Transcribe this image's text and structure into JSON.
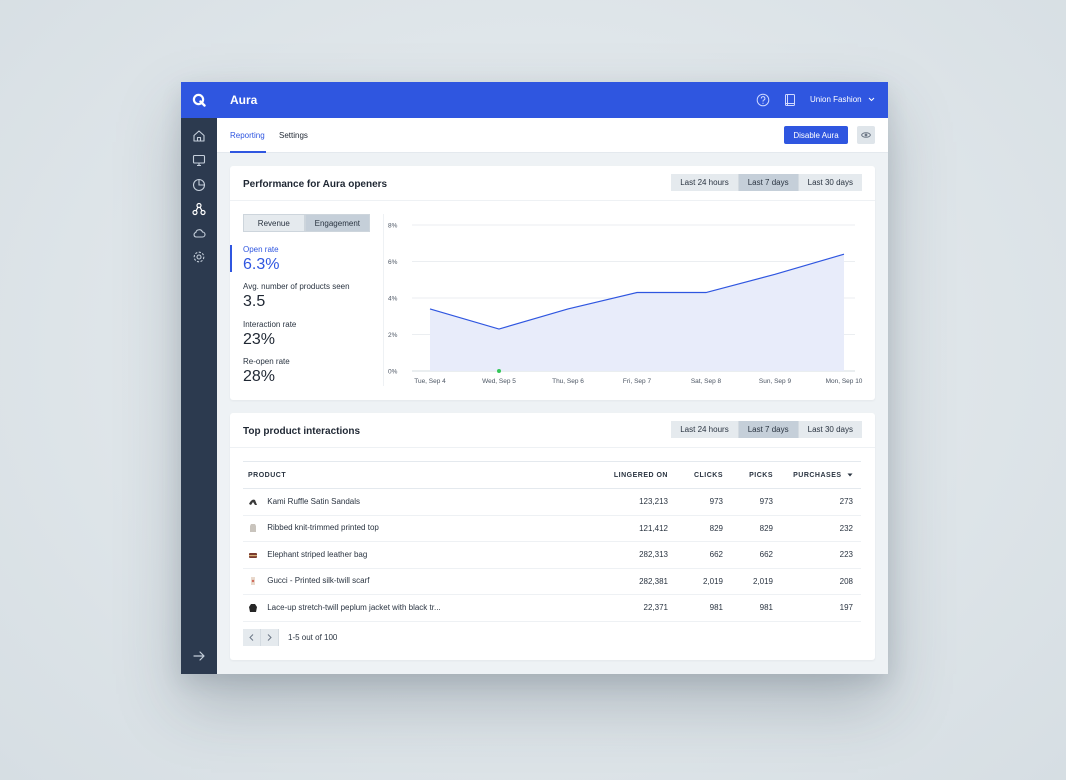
{
  "app": {
    "title": "Aura",
    "account": "Union Fashion",
    "logo_letter": "Q"
  },
  "sidebar": {
    "items": [
      {
        "name": "home-icon"
      },
      {
        "name": "monitor-icon"
      },
      {
        "name": "pie-chart-icon"
      },
      {
        "name": "integrations-icon"
      },
      {
        "name": "cloud-icon"
      },
      {
        "name": "gear-icon"
      }
    ],
    "collapse": "arrow-right-icon"
  },
  "subnav": {
    "tabs": [
      {
        "label": "Reporting",
        "active": true
      },
      {
        "label": "Settings",
        "active": false
      }
    ],
    "disable_button": "Disable Aura"
  },
  "performance": {
    "title": "Performance for Aura openers",
    "ranges": [
      "Last 24 hours",
      "Last 7 days",
      "Last 30 days"
    ],
    "active_range": "Last 7 days",
    "toggle": [
      "Revenue",
      "Engagement"
    ],
    "active_toggle": "Engagement",
    "metrics": [
      {
        "label": "Open rate",
        "value": "6.3%"
      },
      {
        "label": "Avg. number of products seen",
        "value": "3.5"
      },
      {
        "label": "Interaction rate",
        "value": "23%"
      },
      {
        "label": "Re-open rate",
        "value": "28%"
      }
    ]
  },
  "chart_data": {
    "type": "area",
    "title": "",
    "xlabel": "",
    "ylabel": "",
    "categories": [
      "Tue, Sep 4",
      "Wed, Sep 5",
      "Thu, Sep 6",
      "Fri, Sep 7",
      "Sat, Sep 8",
      "Sun, Sep 9",
      "Mon, Sep 10"
    ],
    "series": [
      {
        "values": [
          3.4,
          2.3,
          3.4,
          4.3,
          4.3,
          5.3,
          6.4
        ]
      }
    ],
    "yticks": [
      "0%",
      "2%",
      "4%",
      "6%",
      "8%"
    ],
    "ylim": [
      0,
      8
    ],
    "grid": true,
    "line_color": "#2f56e0",
    "fill_color": "#e8ecfa",
    "marker": {
      "category": "Wed, Sep 5",
      "color": "#34c759"
    }
  },
  "products": {
    "title": "Top product interactions",
    "ranges": [
      "Last 24 hours",
      "Last 7 days",
      "Last 30 days"
    ],
    "active_range": "Last 7 days",
    "columns": [
      "PRODUCT",
      "LINGERED ON",
      "CLICKS",
      "PICKS",
      "PURCHASES"
    ],
    "rows": [
      {
        "name": "Kami Ruffle Satin Sandals",
        "lingered": "123,213",
        "clicks": "973",
        "picks": "973",
        "purchases": "273"
      },
      {
        "name": "Ribbed knit-trimmed printed top",
        "lingered": "121,412",
        "clicks": "829",
        "picks": "829",
        "purchases": "232"
      },
      {
        "name": "Elephant striped leather bag",
        "lingered": "282,313",
        "clicks": "662",
        "picks": "662",
        "purchases": "223"
      },
      {
        "name": "Gucci - Printed silk-twill scarf",
        "lingered": "282,381",
        "clicks": "2,019",
        "picks": "2,019",
        "purchases": "208"
      },
      {
        "name": "Lace-up stretch-twill peplum jacket with black tr...",
        "lingered": "22,371",
        "clicks": "981",
        "picks": "981",
        "purchases": "197"
      }
    ],
    "pagination": "1-5 out of 100"
  }
}
